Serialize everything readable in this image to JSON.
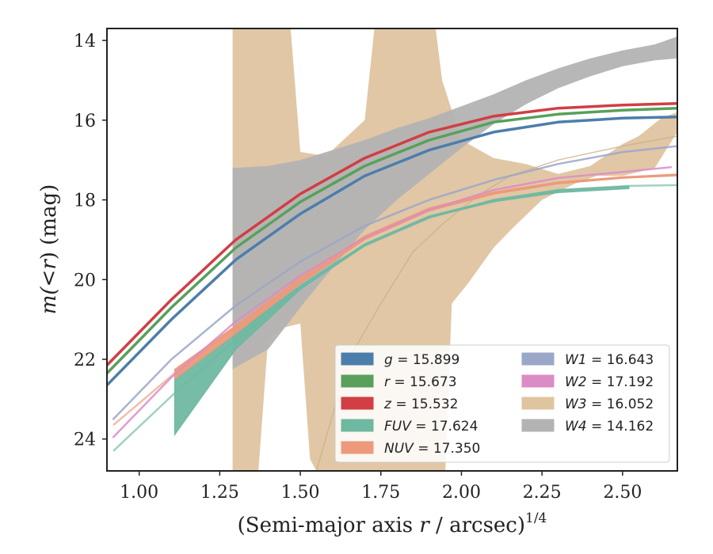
{
  "chart_data": {
    "type": "line",
    "xlabel_main": "(Semi-major axis ",
    "xlabel_var": "r",
    "xlabel_rest": " / arcsec)",
    "xlabel_exp": "1/4",
    "ylabel_main": "m(<",
    "ylabel_var": "r",
    "ylabel_rest": ") (mag)",
    "xlim": [
      0.9,
      2.67
    ],
    "ylim": [
      24.8,
      13.7
    ],
    "y_inverted": true,
    "xticks": [
      {
        "v": 1.0,
        "label": "1.00"
      },
      {
        "v": 1.25,
        "label": "1.25"
      },
      {
        "v": 1.5,
        "label": "1.50"
      },
      {
        "v": 1.75,
        "label": "1.75"
      },
      {
        "v": 2.0,
        "label": "2.00"
      },
      {
        "v": 2.25,
        "label": "2.25"
      },
      {
        "v": 2.5,
        "label": "2.50"
      }
    ],
    "yticks": [
      {
        "v": 14,
        "label": "14"
      },
      {
        "v": 16,
        "label": "16"
      },
      {
        "v": 18,
        "label": "18"
      },
      {
        "v": 20,
        "label": "20"
      },
      {
        "v": 22,
        "label": "22"
      },
      {
        "v": 24,
        "label": "24"
      }
    ],
    "grid": false,
    "legend_position": "lower-right",
    "series": [
      {
        "name": "g = 15.899",
        "color": "#4c7eab",
        "style": "line",
        "width": 3.5,
        "points": [
          [
            0.9,
            22.65
          ],
          [
            1.1,
            21.0
          ],
          [
            1.3,
            19.5
          ],
          [
            1.5,
            18.35
          ],
          [
            1.7,
            17.4
          ],
          [
            1.9,
            16.75
          ],
          [
            2.1,
            16.3
          ],
          [
            2.3,
            16.05
          ],
          [
            2.5,
            15.95
          ],
          [
            2.67,
            15.92
          ]
        ]
      },
      {
        "name": "r = 15.673",
        "color": "#58a05c",
        "style": "line",
        "width": 3.5,
        "points": [
          [
            0.9,
            22.35
          ],
          [
            1.1,
            20.7
          ],
          [
            1.3,
            19.2
          ],
          [
            1.5,
            18.05
          ],
          [
            1.7,
            17.15
          ],
          [
            1.9,
            16.5
          ],
          [
            2.1,
            16.05
          ],
          [
            2.3,
            15.85
          ],
          [
            2.5,
            15.75
          ],
          [
            2.67,
            15.7
          ]
        ]
      },
      {
        "name": "z = 15.532",
        "color": "#d13e44",
        "style": "line",
        "width": 3.5,
        "points": [
          [
            0.9,
            22.15
          ],
          [
            1.1,
            20.5
          ],
          [
            1.3,
            19.0
          ],
          [
            1.5,
            17.85
          ],
          [
            1.7,
            16.95
          ],
          [
            1.9,
            16.3
          ],
          [
            2.1,
            15.9
          ],
          [
            2.3,
            15.7
          ],
          [
            2.5,
            15.62
          ],
          [
            2.67,
            15.58
          ]
        ]
      },
      {
        "name": "FUV = 17.624",
        "color": "#6fb8a1",
        "style": "band",
        "points": [
          [
            1.11,
            22.45
          ],
          [
            1.3,
            21.35
          ],
          [
            1.5,
            20.15
          ],
          [
            1.7,
            19.1
          ],
          [
            1.9,
            18.4
          ],
          [
            2.1,
            18.0
          ],
          [
            2.3,
            17.75
          ],
          [
            2.52,
            17.65
          ]
        ],
        "lower": [
          [
            1.11,
            23.9
          ],
          [
            1.3,
            21.75
          ],
          [
            1.5,
            20.25
          ],
          [
            1.7,
            19.15
          ],
          [
            1.9,
            18.45
          ],
          [
            2.1,
            18.05
          ],
          [
            2.3,
            17.82
          ],
          [
            2.52,
            17.72
          ]
        ],
        "extension": [
          [
            0.92,
            24.3
          ],
          [
            1.11,
            22.85
          ],
          [
            1.3,
            21.5
          ],
          [
            1.5,
            20.2
          ],
          [
            1.7,
            19.15
          ],
          [
            1.9,
            18.45
          ],
          [
            2.1,
            18.0
          ],
          [
            2.3,
            17.75
          ],
          [
            2.52,
            17.65
          ],
          [
            2.67,
            17.63
          ]
        ]
      },
      {
        "name": "NUV = 17.350",
        "color": "#ec9a7b",
        "style": "band",
        "points": [
          [
            1.11,
            22.25
          ],
          [
            1.3,
            21.15
          ],
          [
            1.5,
            19.95
          ],
          [
            1.7,
            18.9
          ],
          [
            1.9,
            18.2
          ],
          [
            2.1,
            17.8
          ],
          [
            2.3,
            17.55
          ],
          [
            2.5,
            17.42
          ],
          [
            2.67,
            17.36
          ]
        ],
        "lower": [
          [
            1.11,
            22.5
          ],
          [
            1.3,
            21.35
          ],
          [
            1.5,
            20.1
          ],
          [
            1.7,
            19.0
          ],
          [
            1.9,
            18.28
          ],
          [
            2.1,
            17.86
          ],
          [
            2.3,
            17.6
          ],
          [
            2.5,
            17.46
          ],
          [
            2.67,
            17.4
          ]
        ],
        "extension": [
          [
            0.92,
            23.65
          ],
          [
            1.11,
            22.35
          ],
          [
            1.3,
            21.2
          ],
          [
            1.5,
            20.0
          ],
          [
            1.7,
            18.95
          ],
          [
            1.9,
            18.25
          ],
          [
            2.1,
            17.82
          ],
          [
            2.3,
            17.57
          ],
          [
            2.5,
            17.44
          ],
          [
            2.67,
            17.36
          ]
        ]
      },
      {
        "name": "W1 = 16.643",
        "color": "#9aa7c8",
        "style": "line",
        "width": 2.5,
        "points": [
          [
            0.92,
            23.5
          ],
          [
            1.1,
            22.0
          ],
          [
            1.3,
            20.65
          ],
          [
            1.5,
            19.55
          ],
          [
            1.7,
            18.65
          ],
          [
            1.9,
            18.0
          ],
          [
            2.1,
            17.5
          ],
          [
            2.3,
            17.1
          ],
          [
            2.5,
            16.8
          ],
          [
            2.67,
            16.65
          ]
        ]
      },
      {
        "name": "W2 = 17.192",
        "color": "#dc8cc4",
        "style": "line",
        "width": 2.5,
        "points": [
          [
            0.92,
            23.95
          ],
          [
            1.1,
            22.45
          ],
          [
            1.3,
            21.05
          ],
          [
            1.5,
            19.9
          ],
          [
            1.7,
            18.95
          ],
          [
            1.9,
            18.25
          ],
          [
            2.1,
            17.75
          ],
          [
            2.3,
            17.45
          ],
          [
            2.5,
            17.3
          ],
          [
            2.65,
            17.18
          ]
        ]
      },
      {
        "name": "W3 = 16.052",
        "color": "#dfc4a0",
        "style": "band",
        "upper": [
          [
            1.29,
            13.7
          ],
          [
            1.37,
            13.7
          ],
          [
            1.47,
            13.7
          ],
          [
            1.5,
            16.8
          ],
          [
            1.58,
            16.9
          ],
          [
            1.62,
            16.6
          ],
          [
            1.7,
            16.0
          ],
          [
            1.73,
            13.7
          ],
          [
            1.77,
            13.7
          ],
          [
            1.83,
            13.7
          ],
          [
            1.92,
            13.7
          ],
          [
            1.94,
            15.0
          ],
          [
            2.0,
            16.5
          ],
          [
            2.1,
            16.95
          ],
          [
            2.2,
            17.1
          ],
          [
            2.3,
            17.35
          ],
          [
            2.4,
            17.15
          ],
          [
            2.5,
            16.6
          ],
          [
            2.55,
            16.4
          ],
          [
            2.62,
            15.95
          ],
          [
            2.67,
            15.8
          ]
        ],
        "lower": [
          [
            2.67,
            16.3
          ],
          [
            2.6,
            17.2
          ],
          [
            2.5,
            17.4
          ],
          [
            2.42,
            17.4
          ],
          [
            2.35,
            17.6
          ],
          [
            2.25,
            18.0
          ],
          [
            2.16,
            18.7
          ],
          [
            2.1,
            19.2
          ],
          [
            2.02,
            20.1
          ],
          [
            1.97,
            20.6
          ],
          [
            1.95,
            24.8
          ],
          [
            1.8,
            24.8
          ],
          [
            1.6,
            24.8
          ],
          [
            1.55,
            24.8
          ],
          [
            1.53,
            24.5
          ],
          [
            1.5,
            21.1
          ],
          [
            1.45,
            21.2
          ],
          [
            1.4,
            21.5
          ],
          [
            1.37,
            24.8
          ],
          [
            1.29,
            24.8
          ]
        ],
        "center": [
          [
            1.55,
            24.8
          ],
          [
            1.65,
            22.0
          ],
          [
            1.75,
            20.6
          ],
          [
            1.85,
            19.3
          ],
          [
            1.95,
            18.55
          ],
          [
            2.05,
            17.9
          ],
          [
            2.15,
            17.4
          ],
          [
            2.3,
            17.0
          ],
          [
            2.5,
            16.65
          ],
          [
            2.67,
            16.4
          ]
        ]
      },
      {
        "name": "W4 = 14.162",
        "color": "#b3b3b3",
        "style": "band",
        "upper": [
          [
            1.29,
            17.2
          ],
          [
            1.4,
            17.15
          ],
          [
            1.5,
            17.0
          ],
          [
            1.6,
            16.75
          ],
          [
            1.7,
            16.5
          ],
          [
            1.8,
            16.2
          ],
          [
            1.9,
            15.95
          ],
          [
            2.0,
            15.65
          ],
          [
            2.1,
            15.35
          ],
          [
            2.2,
            15.0
          ],
          [
            2.3,
            14.7
          ],
          [
            2.4,
            14.45
          ],
          [
            2.5,
            14.25
          ],
          [
            2.6,
            14.1
          ],
          [
            2.67,
            13.9
          ]
        ],
        "lower": [
          [
            2.67,
            14.45
          ],
          [
            2.6,
            14.5
          ],
          [
            2.5,
            14.65
          ],
          [
            2.4,
            14.9
          ],
          [
            2.3,
            15.2
          ],
          [
            2.2,
            15.6
          ],
          [
            2.1,
            16.1
          ],
          [
            2.0,
            16.7
          ],
          [
            1.9,
            17.35
          ],
          [
            1.8,
            18.0
          ],
          [
            1.7,
            18.75
          ],
          [
            1.6,
            19.7
          ],
          [
            1.5,
            20.7
          ],
          [
            1.4,
            21.75
          ],
          [
            1.3,
            22.2
          ],
          [
            1.29,
            22.25
          ]
        ]
      }
    ],
    "legend": [
      {
        "label_var": "g",
        "label_val": " = 15.899",
        "color": "#4c7eab",
        "col": 0,
        "row": 0
      },
      {
        "label_var": "r",
        "label_val": " = 15.673",
        "color": "#58a05c",
        "col": 0,
        "row": 1
      },
      {
        "label_var": "z",
        "label_val": " = 15.532",
        "color": "#d13e44",
        "col": 0,
        "row": 2
      },
      {
        "label_var": "FUV",
        "label_val": " = 17.624",
        "color": "#6fb8a1",
        "col": 0,
        "row": 3
      },
      {
        "label_var": "NUV",
        "label_val": " = 17.350",
        "color": "#ec9a7b",
        "col": 0,
        "row": 4
      },
      {
        "label_var": "W1",
        "label_val": " = 16.643",
        "color": "#9aa7c8",
        "col": 1,
        "row": 0
      },
      {
        "label_var": "W2",
        "label_val": " = 17.192",
        "color": "#dc8cc4",
        "col": 1,
        "row": 1
      },
      {
        "label_var": "W3",
        "label_val": " = 16.052",
        "color": "#dfc4a0",
        "col": 1,
        "row": 2
      },
      {
        "label_var": "W4",
        "label_val": " = 14.162",
        "color": "#b3b3b3",
        "col": 1,
        "row": 3
      }
    ]
  }
}
